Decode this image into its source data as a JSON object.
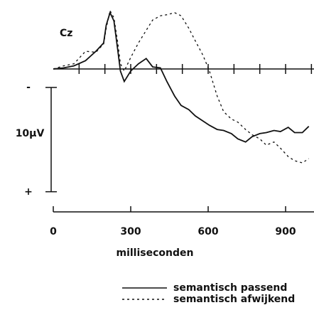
{
  "chart_data": {
    "type": "line",
    "title": "Cz",
    "x_label": "milliseconden",
    "x": [
      0,
      40,
      80,
      125,
      165,
      195,
      205,
      220,
      235,
      250,
      260,
      275,
      300,
      330,
      360,
      385,
      415,
      440,
      470,
      495,
      525,
      550,
      580,
      605,
      635,
      660,
      690,
      715,
      745,
      770,
      800,
      825,
      855,
      880,
      910,
      935,
      965,
      990
    ],
    "series": [
      {
        "name": "semantisch passend",
        "color": "#111111",
        "dash": "solid",
        "values": [
          0,
          -0.1,
          -0.3,
          -0.8,
          -1.7,
          -2.5,
          -4.2,
          -5.4,
          -4.6,
          -1.8,
          0.2,
          1.2,
          0.2,
          -0.5,
          -1.0,
          -0.2,
          -0.1,
          1.2,
          2.6,
          3.5,
          3.9,
          4.5,
          5.0,
          5.4,
          5.8,
          5.9,
          6.2,
          6.7,
          7.0,
          6.5,
          6.2,
          6.1,
          5.9,
          6.0,
          5.6,
          6.1,
          6.1,
          5.5
        ]
      },
      {
        "name": "semantisch afwijkend",
        "color": "#111111",
        "dash": "dashed",
        "values": [
          0,
          -0.3,
          -0.5,
          -1.7,
          -1.6,
          -2.4,
          -3.9,
          -5.6,
          -4.9,
          -2.5,
          -0.5,
          0.2,
          -1.1,
          -2.5,
          -3.7,
          -4.7,
          -5.1,
          -5.2,
          -5.4,
          -5.1,
          -3.9,
          -2.7,
          -1.3,
          0.2,
          2.6,
          4.1,
          4.8,
          5.1,
          5.8,
          6.3,
          6.7,
          7.3,
          7.0,
          7.6,
          8.4,
          8.8,
          9.0,
          8.6
        ]
      }
    ],
    "xlim": [
      0,
      1010
    ],
    "xticks": [
      0,
      300,
      600,
      900
    ],
    "minor_xticks": [
      100,
      200,
      300,
      400,
      500,
      600,
      700,
      800,
      900,
      1000
    ],
    "ylim": [
      -6,
      12
    ],
    "y_reversed": true,
    "calibration": {
      "value": 10,
      "label": "10µV",
      "negative_label": "-",
      "positive_label": "+"
    }
  }
}
